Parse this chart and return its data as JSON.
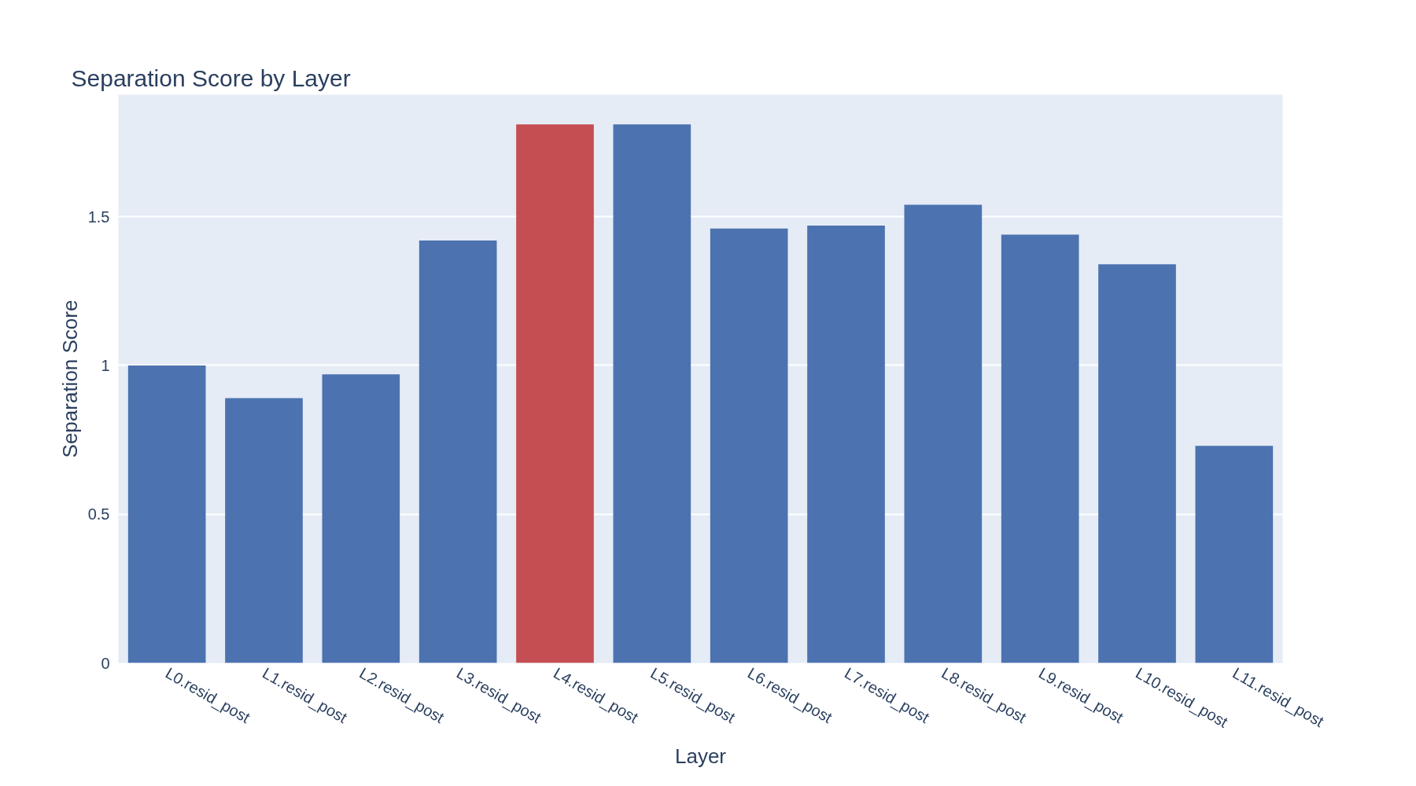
{
  "chart_data": {
    "type": "bar",
    "title": "Separation Score by Layer",
    "xlabel": "Layer",
    "ylabel": "Separation Score",
    "categories": [
      "L0.resid_post",
      "L1.resid_post",
      "L2.resid_post",
      "L3.resid_post",
      "L4.resid_post",
      "L5.resid_post",
      "L6.resid_post",
      "L7.resid_post",
      "L8.resid_post",
      "L9.resid_post",
      "L10.resid_post",
      "L11.resid_post"
    ],
    "values": [
      1.0,
      0.89,
      0.97,
      1.42,
      1.81,
      1.81,
      1.46,
      1.47,
      1.54,
      1.44,
      1.34,
      0.73
    ],
    "colors": [
      "#4c72b0",
      "#4c72b0",
      "#4c72b0",
      "#4c72b0",
      "#c44e52",
      "#4c72b0",
      "#4c72b0",
      "#4c72b0",
      "#4c72b0",
      "#4c72b0",
      "#4c72b0",
      "#4c72b0"
    ],
    "ylim": [
      0,
      1.91
    ],
    "yticks": [
      0,
      0.5,
      1,
      1.5
    ],
    "grid": "y"
  }
}
